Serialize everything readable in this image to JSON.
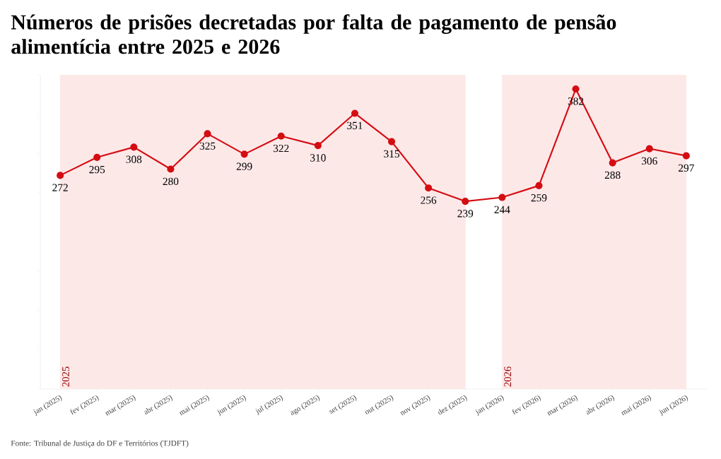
{
  "chart_data": {
    "type": "line",
    "title": "Números de prisões decretadas por falta de pagamento de pensão alimentícia entre 2025 e 2026",
    "categories": [
      "jan (2025)",
      "fev (2025)",
      "mar (2025)",
      "abr (2025)",
      "mai (2025)",
      "jun (2025)",
      "jul (2025)",
      "ago (2025)",
      "set (2025)",
      "out (2025)",
      "nov (2025)",
      "dez (2025)",
      "jan (2026)",
      "fev (2026)",
      "mar (2026)",
      "abr (2026)",
      "mai (2026)",
      "jun (2026)"
    ],
    "series": [
      {
        "color": "#d40d12",
        "values": [
          272,
          295,
          308,
          280,
          325,
          299,
          322,
          310,
          351,
          315,
          256,
          239,
          244,
          259,
          382,
          288,
          306,
          297
        ]
      }
    ],
    "ylim": [
      0,
      400
    ],
    "yticks": [
      {
        "value": 0,
        "label": null
      },
      {
        "value": 50,
        "label": null
      },
      {
        "value": 100,
        "label": null
      },
      {
        "value": 150,
        "label": null
      },
      {
        "value": 200,
        "label": null
      },
      {
        "value": 250,
        "label": null
      },
      {
        "value": 300,
        "label": null
      },
      {
        "value": 350,
        "label": null
      },
      {
        "value": 400,
        "label": null
      }
    ],
    "tick_labels": "x",
    "grid": "x",
    "marker": "circle",
    "data_labels": true,
    "bands": [
      {
        "axis": "x",
        "from": "jan (2025)",
        "to": "dez (2025)",
        "label": "2025",
        "color": "#fde8e8"
      },
      {
        "axis": "x",
        "from": "jan (2026)",
        "to": "jun (2026)",
        "label": "2026",
        "color": "#fde8e8"
      }
    ],
    "annotations": [
      "Fonte: Tribunal de Justiça do DF e Territórios (TJDFT)"
    ]
  }
}
